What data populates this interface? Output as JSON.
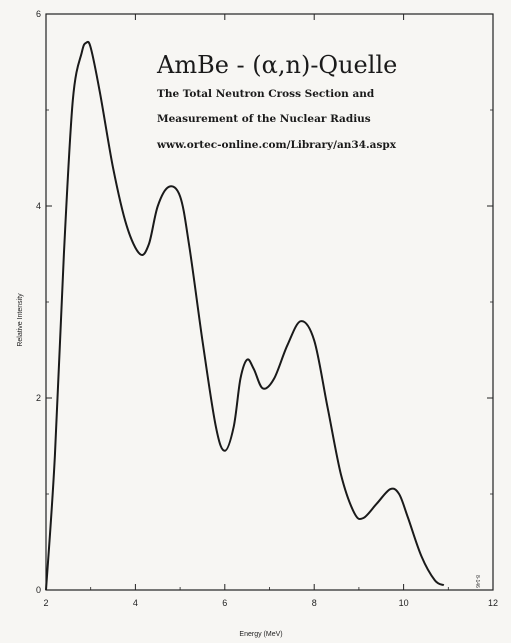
{
  "chart_data": {
    "type": "line",
    "title": "AmBe - (α,n)-Quelle",
    "subtitle_lines": [
      "The Total Neutron Cross Section and",
      "Measurement of the Nuclear Radius",
      "www.ortec-online.com/Library/an34.aspx"
    ],
    "xlabel": "Energy (MeV)",
    "ylabel": "Relative Intensity",
    "xlim": [
      2,
      12
    ],
    "ylim": [
      0,
      6
    ],
    "x_ticks": [
      "2",
      "4",
      "6",
      "8",
      "10",
      "12"
    ],
    "y_ticks": [
      "0",
      "2",
      "4",
      "6"
    ],
    "grid": false,
    "corner_note": "8-146",
    "series": [
      {
        "x": [
          2.0,
          2.2,
          2.4,
          2.6,
          2.8,
          2.9,
          3.0,
          3.2,
          3.5,
          3.8,
          4.1,
          4.3,
          4.5,
          4.75,
          5.0,
          5.2,
          5.5,
          5.8,
          6.0,
          6.2,
          6.35,
          6.5,
          6.65,
          6.85,
          7.1,
          7.4,
          7.7,
          8.0,
          8.3,
          8.6,
          8.9,
          9.1,
          9.4,
          9.7,
          9.9,
          10.1,
          10.4,
          10.7,
          10.9
        ],
        "y": [
          0.0,
          1.4,
          3.5,
          5.1,
          5.6,
          5.7,
          5.65,
          5.2,
          4.4,
          3.8,
          3.5,
          3.6,
          4.0,
          4.2,
          4.1,
          3.6,
          2.6,
          1.7,
          1.45,
          1.7,
          2.2,
          2.4,
          2.3,
          2.1,
          2.2,
          2.55,
          2.8,
          2.6,
          1.9,
          1.2,
          0.8,
          0.75,
          0.9,
          1.05,
          1.0,
          0.75,
          0.35,
          0.1,
          0.05
        ]
      }
    ]
  }
}
